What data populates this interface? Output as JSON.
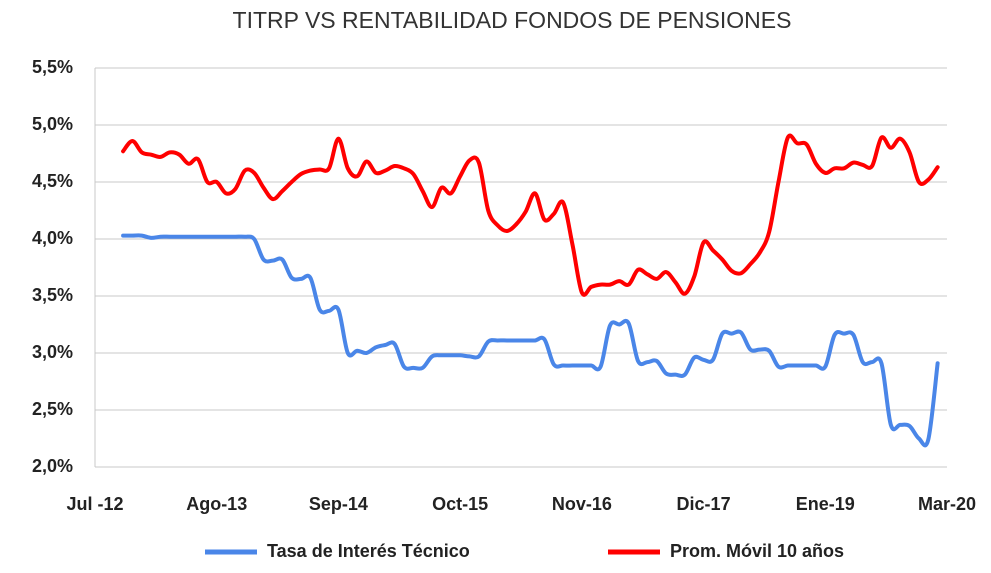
{
  "chart_data": {
    "type": "line",
    "title": "TITRP VS RENTABILIDAD FONDOS DE PENSIONES",
    "categories": [
      "Jul -12",
      null,
      null,
      null,
      null,
      null,
      null,
      null,
      null,
      null,
      null,
      null,
      null,
      "Ago-13",
      null,
      null,
      null,
      null,
      null,
      null,
      null,
      null,
      null,
      null,
      null,
      null,
      "Sep-14",
      null,
      null,
      null,
      null,
      null,
      null,
      null,
      null,
      null,
      null,
      null,
      null,
      "Oct-15",
      null,
      null,
      null,
      null,
      null,
      null,
      null,
      null,
      null,
      null,
      null,
      null,
      "Nov-16",
      null,
      null,
      null,
      null,
      null,
      null,
      null,
      null,
      null,
      null,
      null,
      null,
      "Dic-17",
      null,
      null,
      null,
      null,
      null,
      null,
      null,
      null,
      null,
      null,
      null,
      null,
      "Ene-19",
      null,
      null,
      null,
      null,
      null,
      null,
      null,
      null,
      null,
      null,
      null,
      null,
      "Mar-20"
    ],
    "series": [
      {
        "name": "Tasa de Interés Técnico",
        "color": "#4a86e8",
        "values": [
          null,
          null,
          null,
          4.03,
          4.03,
          4.03,
          4.01,
          4.02,
          4.02,
          4.02,
          4.02,
          4.02,
          4.02,
          4.02,
          4.02,
          4.02,
          4.02,
          4.0,
          3.82,
          3.81,
          3.82,
          3.66,
          3.65,
          3.66,
          3.38,
          3.37,
          3.38,
          3.0,
          3.02,
          3.0,
          3.05,
          3.07,
          3.08,
          2.88,
          2.87,
          2.87,
          2.97,
          2.98,
          2.98,
          2.98,
          2.97,
          2.97,
          3.1,
          3.11,
          3.11,
          3.11,
          3.11,
          3.11,
          3.12,
          2.9,
          2.89,
          2.89,
          2.89,
          2.89,
          2.88,
          3.24,
          3.25,
          3.26,
          2.93,
          2.92,
          2.93,
          2.82,
          2.81,
          2.81,
          2.96,
          2.94,
          2.94,
          3.17,
          3.17,
          3.18,
          3.03,
          3.03,
          3.02,
          2.88,
          2.89,
          2.89,
          2.89,
          2.89,
          2.88,
          3.16,
          3.17,
          3.16,
          2.92,
          2.92,
          2.91,
          2.37,
          2.37,
          2.36,
          2.25,
          2.24,
          2.91,
          null
        ]
      },
      {
        "name": "Prom. Móvil 10 años",
        "color": "#ff0000",
        "values": [
          null,
          null,
          null,
          4.77,
          4.86,
          4.76,
          4.74,
          4.72,
          4.76,
          4.74,
          4.66,
          4.7,
          4.5,
          4.5,
          4.4,
          4.44,
          4.6,
          4.58,
          4.45,
          4.35,
          4.42,
          4.5,
          4.57,
          4.6,
          4.61,
          4.62,
          4.88,
          4.62,
          4.55,
          4.68,
          4.58,
          4.6,
          4.64,
          4.62,
          4.57,
          4.42,
          4.28,
          4.45,
          4.4,
          4.55,
          4.69,
          4.67,
          4.25,
          4.12,
          4.07,
          4.13,
          4.24,
          4.4,
          4.17,
          4.22,
          4.32,
          3.95,
          3.53,
          3.58,
          3.6,
          3.6,
          3.63,
          3.6,
          3.73,
          3.69,
          3.65,
          3.71,
          3.62,
          3.52,
          3.67,
          3.97,
          3.9,
          3.82,
          3.72,
          3.7,
          3.78,
          3.88,
          4.06,
          4.5,
          4.89,
          4.84,
          4.83,
          4.66,
          4.58,
          4.62,
          4.62,
          4.67,
          4.65,
          4.64,
          4.89,
          4.8,
          4.88,
          4.76,
          4.5,
          4.52,
          4.63,
          null
        ]
      }
    ],
    "ylim": [
      2.0,
      5.5
    ],
    "yticks": [
      {
        "value": 2.0,
        "label": "2,0%"
      },
      {
        "value": 2.5,
        "label": "2,5%"
      },
      {
        "value": 3.0,
        "label": "3,0%"
      },
      {
        "value": 3.5,
        "label": "3,5%"
      },
      {
        "value": 4.0,
        "label": "4,0%"
      },
      {
        "value": 4.5,
        "label": "4,5%"
      },
      {
        "value": 5.0,
        "label": "5,0%"
      },
      {
        "value": 5.5,
        "label": "5,5%"
      }
    ],
    "grid": true,
    "legend": "bottom"
  }
}
